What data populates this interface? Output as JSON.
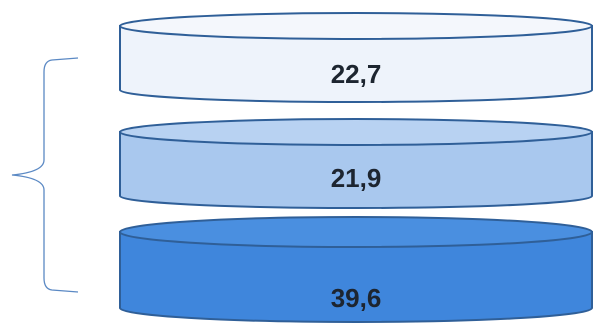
{
  "layers": [
    {
      "value": "22,7",
      "fill": "#eef3fb",
      "top_fill": "#f4f7fc"
    },
    {
      "value": "21,9",
      "fill": "#a9c8ee",
      "top_fill": "#b8d2f2"
    },
    {
      "value": "39,6",
      "fill": "#3f86dc",
      "top_fill": "#4a8fe0"
    }
  ],
  "colors": {
    "stroke": "#2f5f98",
    "bracket": "#5b89c4",
    "text": "#1d2530"
  }
}
